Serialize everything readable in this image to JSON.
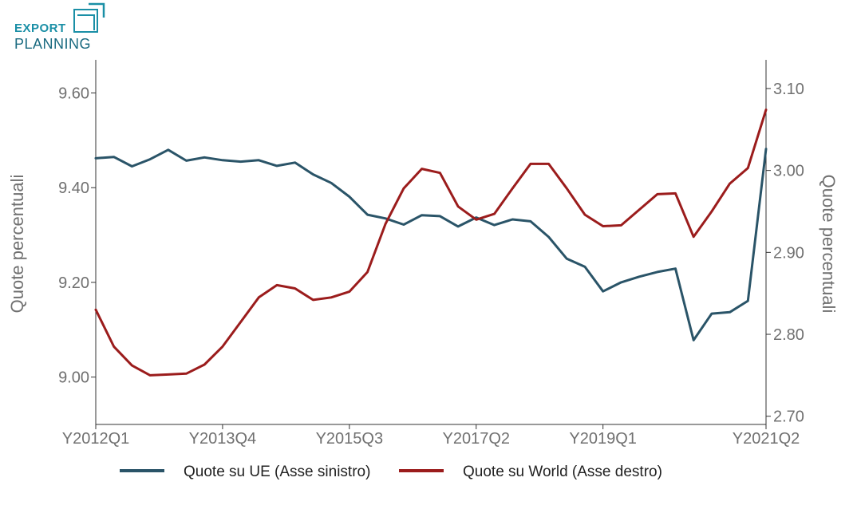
{
  "logo": {
    "line1": "EXPORT",
    "line2": "PLANNING"
  },
  "chart_data": {
    "type": "line",
    "x": [
      "Y2012Q1",
      "Y2012Q2",
      "Y2012Q3",
      "Y2012Q4",
      "Y2013Q1",
      "Y2013Q2",
      "Y2013Q3",
      "Y2013Q4",
      "Y2014Q1",
      "Y2014Q2",
      "Y2014Q3",
      "Y2014Q4",
      "Y2015Q1",
      "Y2015Q2",
      "Y2015Q3",
      "Y2015Q4",
      "Y2016Q1",
      "Y2016Q2",
      "Y2016Q3",
      "Y2016Q4",
      "Y2017Q1",
      "Y2017Q2",
      "Y2017Q3",
      "Y2017Q4",
      "Y2018Q1",
      "Y2018Q2",
      "Y2018Q3",
      "Y2018Q4",
      "Y2019Q1",
      "Y2019Q2",
      "Y2019Q3",
      "Y2019Q4",
      "Y2020Q1",
      "Y2020Q2",
      "Y2020Q3",
      "Y2020Q4",
      "Y2021Q1",
      "Y2021Q2"
    ],
    "x_tick_labels": [
      "Y2012Q1",
      "Y2013Q4",
      "Y2015Q3",
      "Y2017Q2",
      "Y2019Q1",
      "Y2021Q2"
    ],
    "ylabel_left": "Quote percentuali",
    "ylabel_right": "Quote percentuali",
    "ylim_left": [
      8.9,
      9.67
    ],
    "ylim_right": [
      2.69,
      3.135
    ],
    "yticks_left": [
      "9.00",
      "9.20",
      "9.40",
      "9.60"
    ],
    "yticks_right": [
      "2.70",
      "2.80",
      "2.90",
      "3.00",
      "3.10"
    ],
    "legend_position": "bottom",
    "grid": false,
    "series": [
      {
        "name": "Quote su UE (Asse sinistro)",
        "axis": "left",
        "color": "#2a5468",
        "values": [
          9.462,
          9.465,
          9.445,
          9.46,
          9.48,
          9.457,
          9.464,
          9.458,
          9.455,
          9.458,
          9.446,
          9.453,
          9.428,
          9.41,
          9.381,
          9.343,
          9.335,
          9.322,
          9.342,
          9.34,
          9.318,
          9.337,
          9.321,
          9.333,
          9.329,
          9.296,
          9.25,
          9.233,
          9.181,
          9.2,
          9.212,
          9.222,
          9.229,
          9.078,
          9.134,
          9.137,
          9.161,
          9.482
        ]
      },
      {
        "name": "Quote su World (Asse destro)",
        "axis": "right",
        "color": "#9b1c1c",
        "values": [
          2.83,
          2.785,
          2.762,
          2.75,
          2.751,
          2.752,
          2.763,
          2.785,
          2.815,
          2.845,
          2.86,
          2.856,
          2.842,
          2.845,
          2.852,
          2.876,
          2.935,
          2.978,
          3.002,
          2.997,
          2.956,
          2.94,
          2.947,
          2.978,
          3.008,
          3.008,
          2.978,
          2.946,
          2.932,
          2.933,
          2.952,
          2.971,
          2.972,
          2.919,
          2.95,
          2.984,
          3.003,
          3.074
        ]
      }
    ]
  }
}
